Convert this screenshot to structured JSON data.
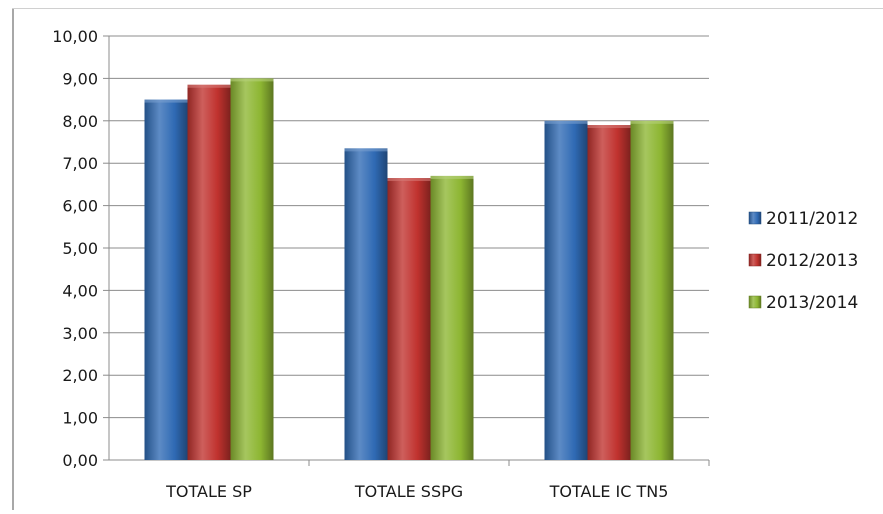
{
  "chart_data": {
    "type": "bar",
    "categories": [
      "TOTALE SP",
      "TOTALE SSPG",
      "TOTALE IC TN5"
    ],
    "series": [
      {
        "name": "2011/2012",
        "values": [
          8.5,
          7.35,
          8.0
        ],
        "color": "#2f6ab4"
      },
      {
        "name": "2012/2013",
        "values": [
          8.85,
          6.65,
          7.9
        ],
        "color": "#c0322e"
      },
      {
        "name": "2013/2014",
        "values": [
          9.0,
          6.7,
          8.0
        ],
        "color": "#8db632"
      }
    ],
    "ylim": [
      0,
      10
    ],
    "y_ticks": [
      "0,00",
      "1,00",
      "2,00",
      "3,00",
      "4,00",
      "5,00",
      "6,00",
      "7,00",
      "8,00",
      "9,00",
      "10,00"
    ],
    "grid": true,
    "legend_position": "right",
    "title": "",
    "xlabel": "",
    "ylabel": ""
  }
}
